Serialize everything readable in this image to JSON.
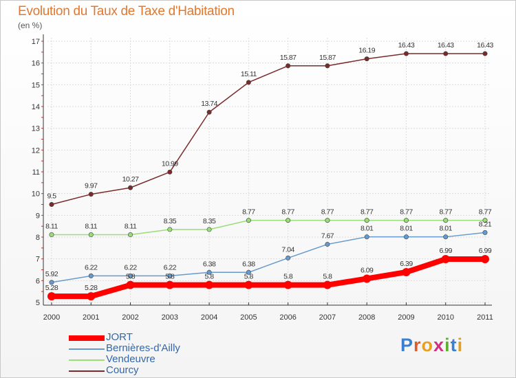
{
  "title": "Evolution du Taux de Taxe d'Habitation",
  "unit": "(en %)",
  "brand": "Proxiti",
  "chart_data": {
    "type": "line",
    "title": "Evolution du Taux de Taxe d'Habitation",
    "ylabel": "(en %)",
    "x": [
      "2000",
      "2001",
      "2002",
      "2003",
      "2004",
      "2005",
      "2006",
      "2007",
      "2008",
      "2009",
      "2010",
      "2011"
    ],
    "ylim": [
      5,
      17
    ],
    "yticks": [
      5,
      6,
      7,
      8,
      9,
      10,
      11,
      12,
      13,
      14,
      15,
      16,
      17
    ],
    "grid": true,
    "legend": "bottom-left",
    "series": [
      {
        "name": "JORT",
        "color": "#ff0000",
        "values": [
          5.28,
          5.28,
          5.8,
          5.8,
          5.8,
          5.8,
          5.8,
          5.8,
          6.09,
          6.39,
          6.99,
          6.99
        ],
        "labels": [
          "5.28",
          "5.28",
          "5.8",
          "5.8",
          "5.8",
          "5.8",
          "5.8",
          "5.8",
          "6.09",
          "6.39",
          "6.99",
          "6.99"
        ]
      },
      {
        "name": "Bernières-d'Ailly",
        "color": "#6699cc",
        "values": [
          5.92,
          6.22,
          6.22,
          6.22,
          6.38,
          6.38,
          7.04,
          7.67,
          8.01,
          8.01,
          8.01,
          8.21
        ],
        "labels": [
          "5.92",
          "6.22",
          "6.22",
          "6.22",
          "6.38",
          "6.38",
          "7.04",
          "7.67",
          "8.01",
          "8.01",
          "8.01",
          "8.21"
        ]
      },
      {
        "name": "Vendeuvre",
        "color": "#99dd77",
        "values": [
          8.11,
          8.11,
          8.11,
          8.35,
          8.35,
          8.77,
          8.77,
          8.77,
          8.77,
          8.77,
          8.77,
          8.77
        ],
        "labels": [
          "8.11",
          "8.11",
          "8.11",
          "8.35",
          "8.35",
          "8.77",
          "8.77",
          "8.77",
          "8.77",
          "8.77",
          "8.77",
          "8.77"
        ]
      },
      {
        "name": "Courcy",
        "color": "#7a2a2a",
        "values": [
          9.5,
          9.97,
          10.27,
          10.99,
          13.74,
          15.11,
          15.87,
          15.87,
          16.19,
          16.43,
          16.43,
          16.43
        ],
        "labels": [
          "9.5",
          "9.97",
          "10.27",
          "10.99",
          "13.74",
          "15.11",
          "15.87",
          "15.87",
          "16.19",
          "16.43",
          "16.43",
          "16.43"
        ]
      }
    ]
  }
}
